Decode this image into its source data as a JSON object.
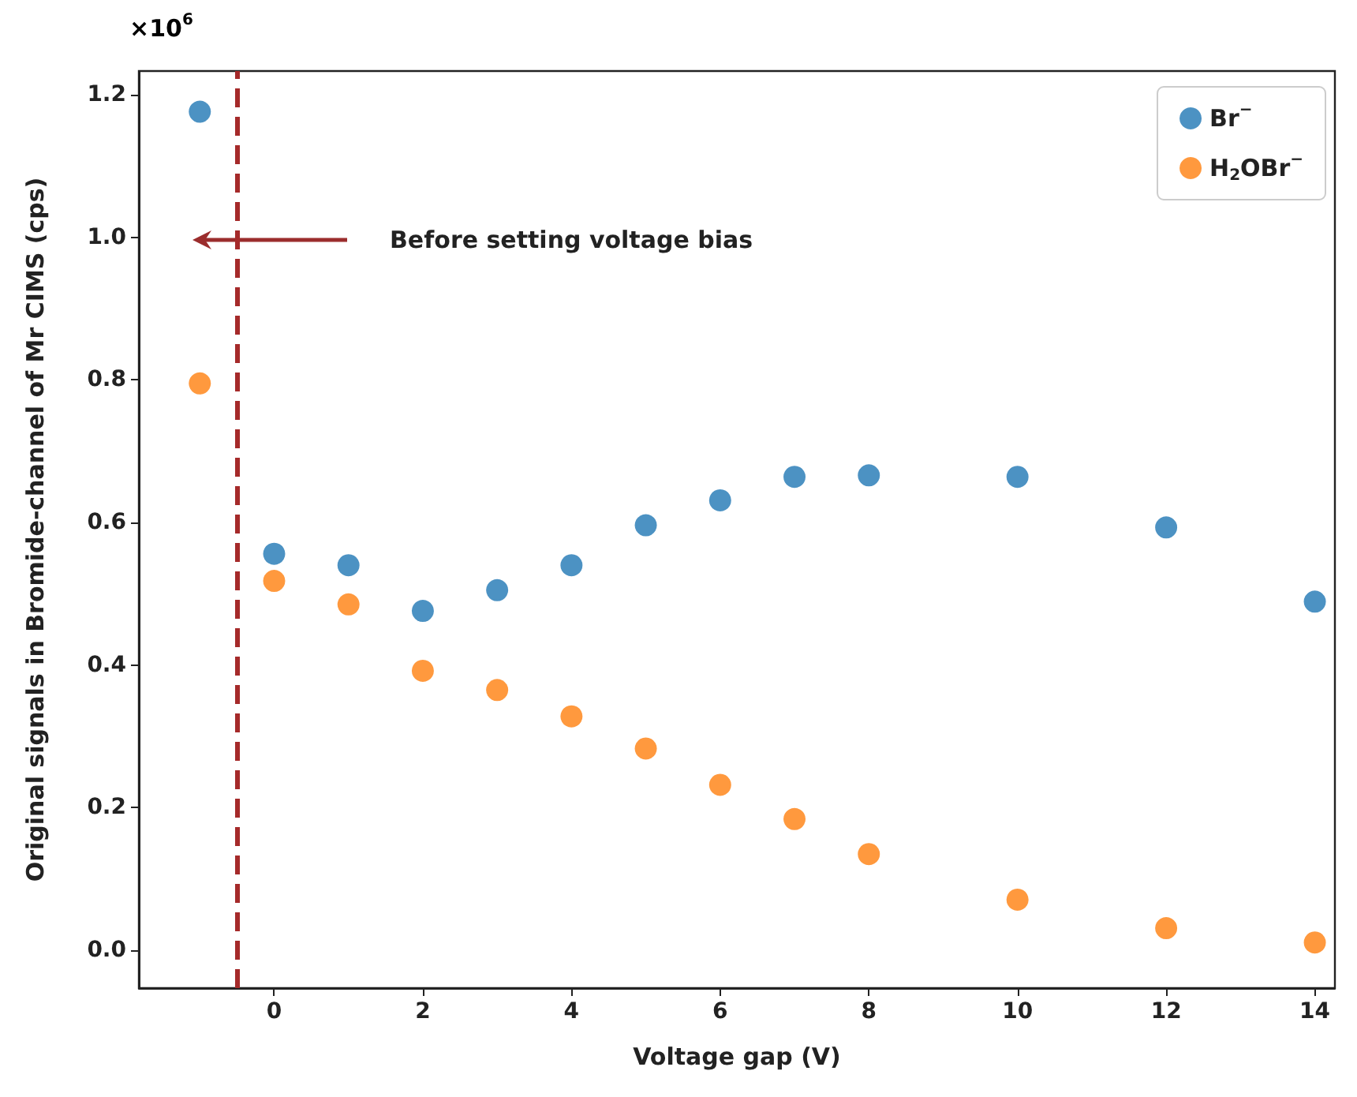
{
  "chart_data": {
    "type": "scatter",
    "xlabel": "Voltage gap (V)",
    "ylabel": "Original signals in Bromide-channel of Mr CIMS (cps)",
    "x": [
      -1,
      0,
      1,
      2,
      3,
      4,
      5,
      6,
      7,
      8,
      10,
      12,
      14
    ],
    "series": [
      {
        "name": "Br$^{−}$",
        "color": "#1f77b4",
        "values": [
          1.176,
          0.556,
          0.54,
          0.476,
          0.505,
          0.54,
          0.596,
          0.631,
          0.664,
          0.666,
          0.664,
          0.593,
          0.489
        ]
      },
      {
        "name": "H$_{2}$OBr$^{−}$",
        "color": "#ff7f0e",
        "values": [
          0.795,
          0.518,
          0.485,
          0.392,
          0.365,
          0.328,
          0.283,
          0.232,
          0.184,
          0.135,
          0.071,
          0.031,
          0.011
        ]
      }
    ],
    "xlim": [
      -1.82,
      14.27
    ],
    "xticks": [
      0,
      2,
      4,
      6,
      8,
      10,
      12,
      14
    ],
    "ylim": [
      -0.053,
      1.233
    ],
    "yticks": [
      {
        "value": 0,
        "label": "0.0"
      },
      0.2,
      0.4,
      0.6,
      0.8,
      {
        "value": 1,
        "label": "1.0"
      },
      1.2
    ],
    "ref_lines": [
      {
        "axis": "x",
        "value": -0.5,
        "color": "#a52a2a",
        "line_style": "dashed"
      }
    ],
    "annotations": [
      "×10$^{6}$",
      "Before setting voltage bias"
    ],
    "legend": "top right",
    "marker": "circle",
    "grid": false
  }
}
